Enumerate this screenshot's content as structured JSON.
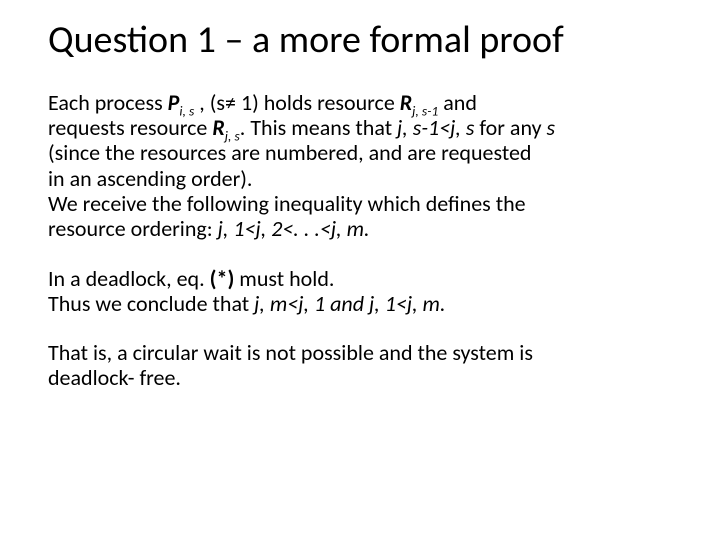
{
  "title": "Question 1 – a more formal proof",
  "p1_l1a": "Each process ",
  "p1_l1b": "P",
  "p1_l1c": "i, s",
  "p1_l1d": "  , (s≠ 1) holds resource ",
  "p1_l1e": "R",
  "p1_l1f": "j, s-1",
  "p1_l1g": " and",
  "p1_l2a": "requests resource ",
  "p1_l2b": "R",
  "p1_l2c": "j, s",
  "p1_l2d": ". This means that ",
  "p1_l2e": "j, s-1<j, s",
  "p1_l2f": " for any ",
  "p1_l2g": "s",
  "p1_l3": "(since the resources are numbered, and are requested",
  "p1_l4": "in an ascending order).",
  "p1_l5": "We receive the following inequality which defines the",
  "p1_l6a": "resource ordering:  ",
  "p1_l6b": "j, 1<j, 2<. . .<j, m.",
  "p2_l1a": "In a deadlock, eq. ",
  "p2_l1b": "(*)",
  "p2_l1c": " must hold.",
  "p2_l2a": "Thus we conclude that ",
  "p2_l2b": "j, m<j, 1 and j, 1<j, m.",
  "p3_l1": "That is, a circular wait is not possible and the system is",
  "p3_l2": "deadlock- free."
}
